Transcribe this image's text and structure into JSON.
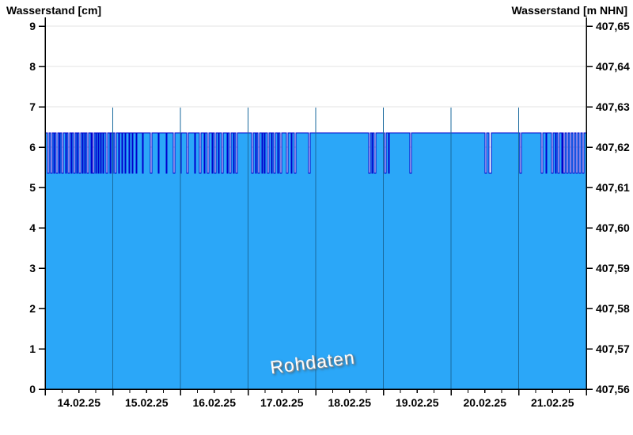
{
  "header": {
    "left_title": "Wasserstand [cm]",
    "right_title": "Wasserstand [m NHN]"
  },
  "watermark_text": "Rohdaten",
  "chart_data": {
    "type": "area",
    "title": "",
    "subtitle": "",
    "legend": false,
    "grid": true,
    "series": [
      {
        "name": "Wasserstand Rohdaten",
        "unit": "cm",
        "style": "step-area"
      }
    ],
    "x": {
      "labels": [
        "14.02.25",
        "15.02.25",
        "16.02.25",
        "17.02.25",
        "18.02.25",
        "19.02.25",
        "20.02.25",
        "21.02.25"
      ],
      "days": 8,
      "start": "14.02.25 00:00",
      "end": "22.02.25 00:00",
      "minor_ticks_per_day": 4
    },
    "y_left": {
      "title": "Wasserstand [cm]",
      "ticks": [
        9,
        8,
        7,
        6,
        5,
        4,
        3,
        2,
        1,
        0
      ],
      "range": [
        0,
        9
      ]
    },
    "y_right": {
      "title": "Wasserstand [m NHN]",
      "ticks": [
        "407,65",
        "407,64",
        "407,63",
        "407,62",
        "407,61",
        "407,60",
        "407,59",
        "407,58",
        "407,57",
        "407,56"
      ],
      "range": [
        407.56,
        407.65
      ]
    },
    "base_value_cm": 7,
    "drop_value_cm": 6,
    "drops_frac": [
      [
        0.0044,
        0.0073
      ],
      [
        0.0102,
        0.0132
      ],
      [
        0.0161,
        0.0175
      ],
      [
        0.0205,
        0.0234
      ],
      [
        0.0263,
        0.0278
      ],
      [
        0.0307,
        0.0336
      ],
      [
        0.038,
        0.0395
      ],
      [
        0.0424,
        0.0453
      ],
      [
        0.0482,
        0.0497
      ],
      [
        0.0526,
        0.0556
      ],
      [
        0.0585,
        0.0599
      ],
      [
        0.0629,
        0.0658
      ],
      [
        0.0687,
        0.0702
      ],
      [
        0.0731,
        0.0746
      ],
      [
        0.0775,
        0.0804
      ],
      [
        0.0848,
        0.0863
      ],
      [
        0.0877,
        0.0906
      ],
      [
        0.0936,
        0.095
      ],
      [
        0.098,
        0.0994
      ],
      [
        0.1023,
        0.1038
      ],
      [
        0.1067,
        0.1082
      ],
      [
        0.1126,
        0.1155
      ],
      [
        0.1199,
        0.1213
      ],
      [
        0.1243,
        0.1257
      ],
      [
        0.1287,
        0.1316
      ],
      [
        0.136,
        0.1374
      ],
      [
        0.1418,
        0.1433
      ],
      [
        0.1477,
        0.1491
      ],
      [
        0.155,
        0.1564
      ],
      [
        0.1608,
        0.1623
      ],
      [
        0.1681,
        0.1696
      ],
      [
        0.1798,
        0.1813
      ],
      [
        0.1944,
        0.1974
      ],
      [
        0.2091,
        0.2105
      ],
      [
        0.2237,
        0.2251
      ],
      [
        0.2368,
        0.2398
      ],
      [
        0.25,
        0.2515
      ],
      [
        0.2617,
        0.2646
      ],
      [
        0.2763,
        0.2778
      ],
      [
        0.2851,
        0.288
      ],
      [
        0.2939,
        0.2953
      ],
      [
        0.2997,
        0.3026
      ],
      [
        0.3085,
        0.3099
      ],
      [
        0.3129,
        0.3158
      ],
      [
        0.3202,
        0.3216
      ],
      [
        0.326,
        0.3289
      ],
      [
        0.3363,
        0.3377
      ],
      [
        0.3406,
        0.3436
      ],
      [
        0.348,
        0.3494
      ],
      [
        0.3523,
        0.3553
      ],
      [
        0.3816,
        0.3845
      ],
      [
        0.3889,
        0.3904
      ],
      [
        0.3933,
        0.3962
      ],
      [
        0.4006,
        0.402
      ],
      [
        0.405,
        0.4064
      ],
      [
        0.4108,
        0.4137
      ],
      [
        0.4181,
        0.4196
      ],
      [
        0.4225,
        0.4254
      ],
      [
        0.4298,
        0.4313
      ],
      [
        0.4342,
        0.4371
      ],
      [
        0.4459,
        0.4488
      ],
      [
        0.4547,
        0.4561
      ],
      [
        0.4605,
        0.4635
      ],
      [
        0.4868,
        0.4898
      ],
      [
        0.598,
        0.6009
      ],
      [
        0.6038,
        0.6053
      ],
      [
        0.6082,
        0.6111
      ],
      [
        0.6272,
        0.6301
      ],
      [
        0.6345,
        0.636
      ],
      [
        0.674,
        0.6769
      ],
      [
        0.8129,
        0.8158
      ],
      [
        0.8202,
        0.8246
      ],
      [
        0.8772,
        0.8801
      ],
      [
        0.9167,
        0.9196
      ],
      [
        0.9254,
        0.9269
      ],
      [
        0.9357,
        0.9386
      ],
      [
        0.943,
        0.9444
      ],
      [
        0.9474,
        0.9503
      ],
      [
        0.9547,
        0.9561
      ],
      [
        0.9576,
        0.9605
      ],
      [
        0.9635,
        0.9664
      ],
      [
        0.9693,
        0.9722
      ],
      [
        0.9751,
        0.9781
      ],
      [
        0.981,
        0.9839
      ],
      [
        0.9868,
        0.9898
      ],
      [
        0.9927,
        0.9956
      ]
    ],
    "colors": {
      "fill": "#2ba7f8",
      "line": "#0000cc",
      "grid": "#e3e3e3",
      "day_separator": "#1a6a9e",
      "axis": "#000000"
    }
  }
}
